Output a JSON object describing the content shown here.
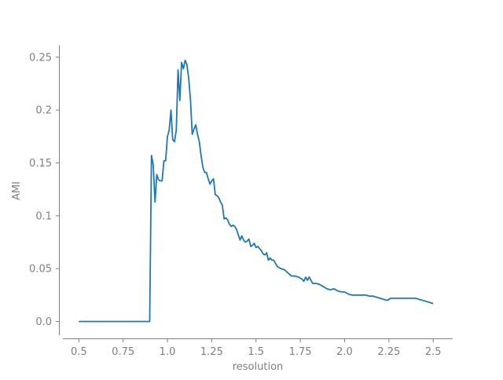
{
  "chart_data": {
    "type": "line",
    "title": "",
    "xlabel": "resolution",
    "ylabel": "AMI",
    "xlim": [
      0.41,
      2.61
    ],
    "ylim": [
      -0.013,
      0.261
    ],
    "xticks": [
      0.5,
      0.75,
      1.0,
      1.25,
      1.5,
      1.75,
      2.0,
      2.25,
      2.5
    ],
    "xtick_labels": [
      "0.5",
      "0.75",
      "1.0",
      "1.25",
      "1.5",
      "1.75",
      "2.0",
      "2.25",
      "2.5"
    ],
    "yticks": [
      0.0,
      0.05,
      0.1,
      0.15,
      0.2,
      0.25
    ],
    "ytick_labels": [
      "0.0",
      "0.05",
      "0.1",
      "0.15",
      "0.2",
      "0.25"
    ],
    "grid": false,
    "series": [
      {
        "color": "#1f77b4",
        "x": [
          0.5,
          0.6,
          0.7,
          0.8,
          0.9,
          0.9,
          0.91,
          0.92,
          0.93,
          0.94,
          0.95,
          0.96,
          0.97,
          0.98,
          0.99,
          1.0,
          1.01,
          1.02,
          1.03,
          1.04,
          1.05,
          1.06,
          1.07,
          1.08,
          1.09,
          1.1,
          1.11,
          1.12,
          1.13,
          1.14,
          1.15,
          1.16,
          1.17,
          1.18,
          1.19,
          1.2,
          1.21,
          1.22,
          1.23,
          1.24,
          1.25,
          1.26,
          1.27,
          1.28,
          1.29,
          1.3,
          1.31,
          1.32,
          1.33,
          1.34,
          1.35,
          1.36,
          1.37,
          1.38,
          1.39,
          1.4,
          1.41,
          1.42,
          1.43,
          1.44,
          1.45,
          1.46,
          1.47,
          1.48,
          1.49,
          1.5,
          1.51,
          1.52,
          1.53,
          1.54,
          1.55,
          1.56,
          1.57,
          1.58,
          1.59,
          1.6,
          1.62,
          1.64,
          1.66,
          1.68,
          1.7,
          1.72,
          1.74,
          1.76,
          1.77,
          1.78,
          1.79,
          1.8,
          1.82,
          1.84,
          1.86,
          1.88,
          1.9,
          1.92,
          1.94,
          1.96,
          1.98,
          2.0,
          2.02,
          2.04,
          2.06,
          2.08,
          2.1,
          2.12,
          2.14,
          2.16,
          2.18,
          2.2,
          2.22,
          2.24,
          2.26,
          2.3,
          2.35,
          2.4,
          2.42,
          2.44,
          2.46,
          2.48,
          2.5
        ],
        "values": [
          0.0,
          0.0,
          0.0,
          0.0,
          0.0,
          0.0,
          0.157,
          0.148,
          0.113,
          0.139,
          0.134,
          0.133,
          0.133,
          0.152,
          0.152,
          0.175,
          0.181,
          0.2,
          0.172,
          0.17,
          0.181,
          0.238,
          0.209,
          0.245,
          0.239,
          0.247,
          0.243,
          0.23,
          0.21,
          0.177,
          0.182,
          0.186,
          0.177,
          0.17,
          0.157,
          0.146,
          0.141,
          0.141,
          0.135,
          0.13,
          0.133,
          0.135,
          0.12,
          0.119,
          0.117,
          0.113,
          0.11,
          0.097,
          0.098,
          0.096,
          0.092,
          0.09,
          0.091,
          0.09,
          0.087,
          0.082,
          0.077,
          0.081,
          0.077,
          0.075,
          0.076,
          0.078,
          0.071,
          0.072,
          0.074,
          0.07,
          0.071,
          0.069,
          0.067,
          0.064,
          0.063,
          0.065,
          0.058,
          0.06,
          0.058,
          0.058,
          0.052,
          0.05,
          0.049,
          0.046,
          0.043,
          0.043,
          0.042,
          0.04,
          0.038,
          0.042,
          0.039,
          0.042,
          0.036,
          0.036,
          0.035,
          0.033,
          0.031,
          0.03,
          0.031,
          0.029,
          0.028,
          0.028,
          0.026,
          0.025,
          0.025,
          0.025,
          0.025,
          0.025,
          0.024,
          0.024,
          0.023,
          0.022,
          0.021,
          0.02,
          0.022,
          0.022,
          0.022,
          0.022,
          0.021,
          0.02,
          0.019,
          0.018,
          0.017
        ]
      }
    ]
  }
}
